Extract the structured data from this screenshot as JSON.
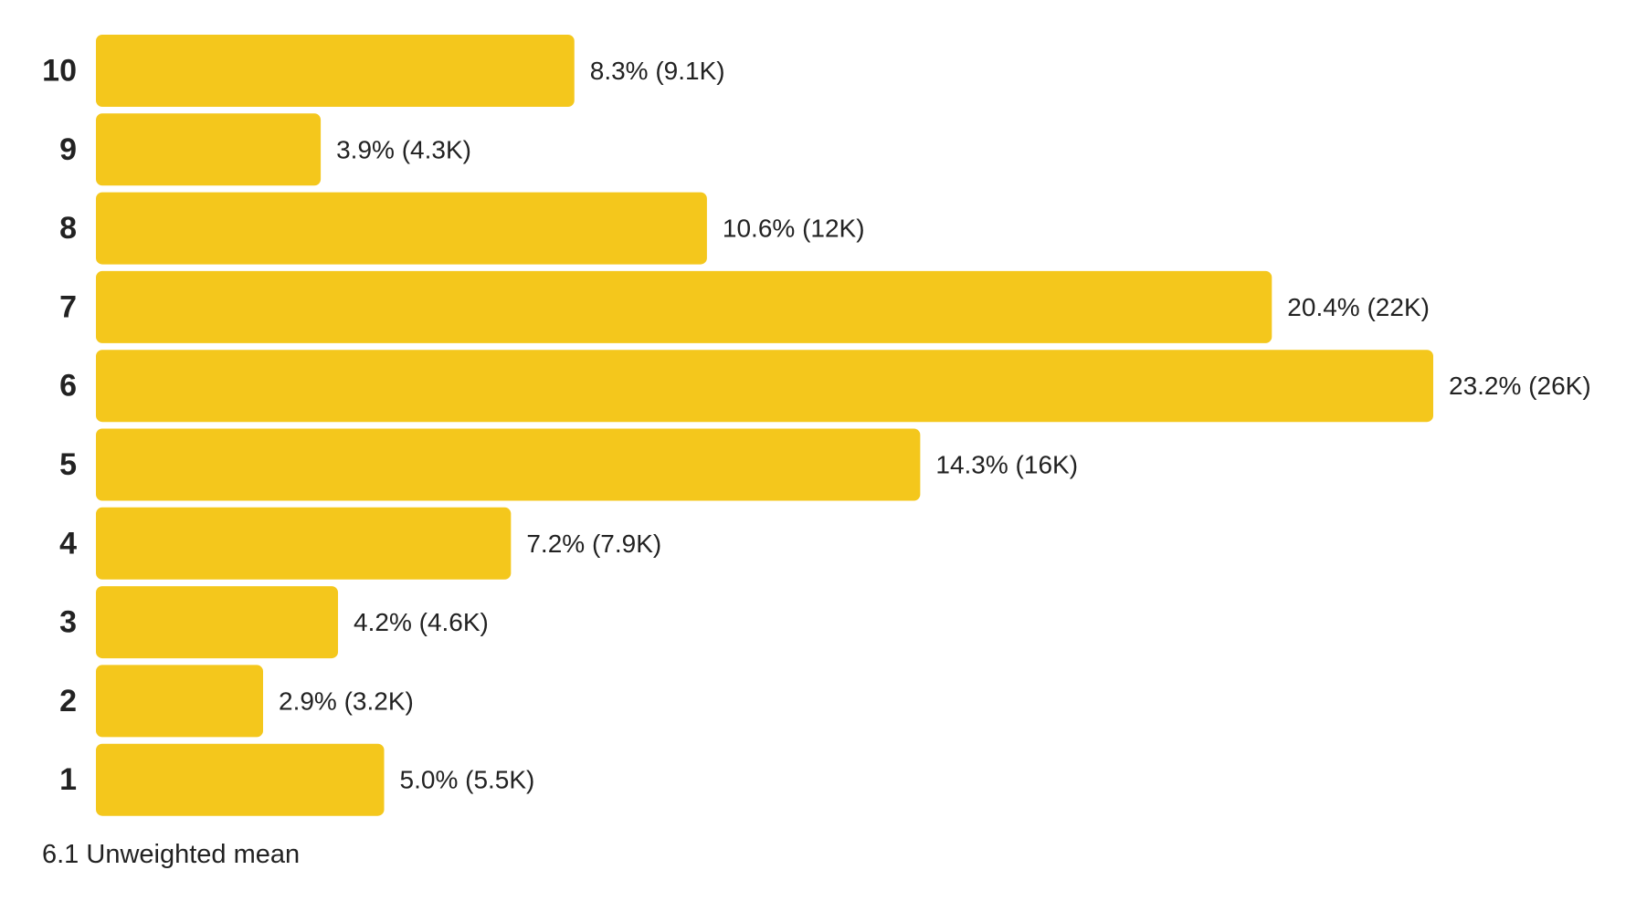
{
  "chart_data": {
    "type": "bar",
    "orientation": "horizontal",
    "categories": [
      "10",
      "9",
      "8",
      "7",
      "6",
      "5",
      "4",
      "3",
      "2",
      "1"
    ],
    "values": [
      8.3,
      3.9,
      10.6,
      20.4,
      23.2,
      14.3,
      7.2,
      4.2,
      2.9,
      5.0
    ],
    "value_labels": [
      "8.3% (9.1K)",
      "3.9% (4.3K)",
      "10.6% (12K)",
      "20.4% (22K)",
      "23.2% (26K)",
      "14.3% (16K)",
      "7.2% (7.9K)",
      "4.2% (4.6K)",
      "2.9% (3.2K)",
      "5.0% (5.5K)"
    ],
    "title": "",
    "xlabel": "",
    "ylabel": "",
    "xlim": [
      0,
      23.2
    ],
    "grid": false,
    "legend": "none",
    "bar_color": "#f4c71c",
    "footnote": "6.1 Unweighted mean"
  }
}
